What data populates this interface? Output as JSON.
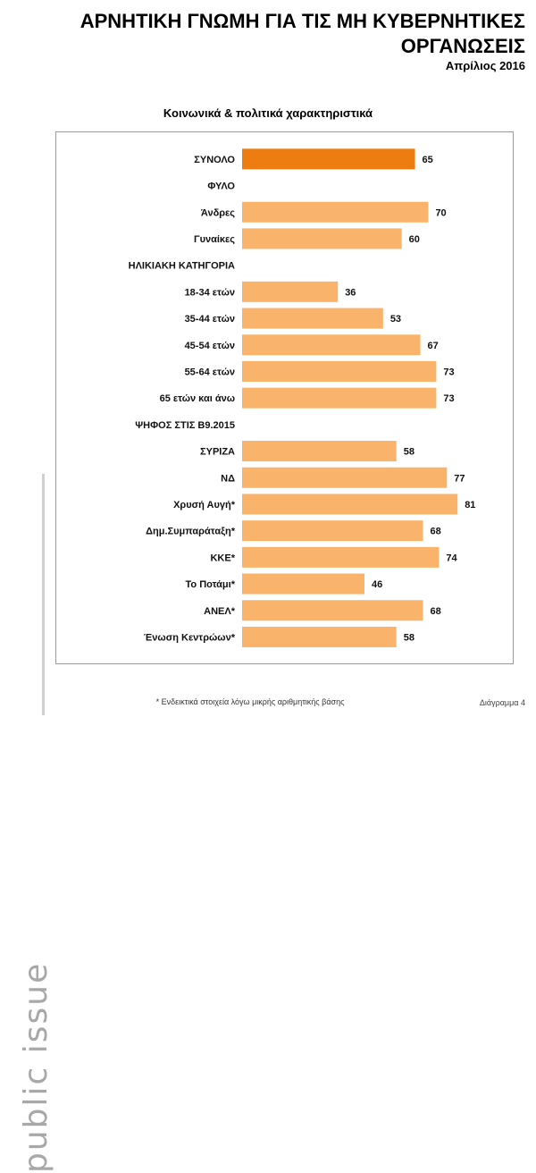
{
  "header": {
    "title_line1": "ΑΡΝΗΤΙΚΗ ΓΝΩΜΗ ΓΙΑ ΤΙΣ ΜΗ ΚΥΒΕΡΝΗΤΙΚΕΣ",
    "title_line2": "ΟΡΓΑΝΩΣΕΙΣ",
    "date": "Απρίλιος 2016"
  },
  "brand": {
    "text": "public issue"
  },
  "footer": {
    "footnote": "* Ενδεικτικά στοιχεία λόγω μικρής αριθμητικής βάσης",
    "diagram_label": "Διάγραμμα 4"
  },
  "colors": {
    "total_bar": "#ed7d10",
    "bar": "#f9b36b"
  },
  "chart_data": {
    "type": "bar",
    "orientation": "horizontal",
    "title": "Κοινωνικά & πολιτικά χαρακτηριστικά",
    "xlim": [
      0,
      90
    ],
    "grid": false,
    "rows": [
      {
        "label": "ΣΥΝΟΛΟ",
        "value": 65,
        "kind": "total"
      },
      {
        "label": "ΦΥΛΟ",
        "value": null,
        "kind": "header"
      },
      {
        "label": "Άνδρες",
        "value": 70,
        "kind": "bar"
      },
      {
        "label": "Γυναίκες",
        "value": 60,
        "kind": "bar"
      },
      {
        "label": "ΗΛΙΚΙΑΚΗ ΚΑΤΗΓΟΡΙΑ",
        "value": null,
        "kind": "header"
      },
      {
        "label": "18-34 ετών",
        "value": 36,
        "kind": "bar"
      },
      {
        "label": "35-44 ετών",
        "value": 53,
        "kind": "bar"
      },
      {
        "label": "45-54 ετών",
        "value": 67,
        "kind": "bar"
      },
      {
        "label": "55-64 ετών",
        "value": 73,
        "kind": "bar"
      },
      {
        "label": "65 ετών και άνω",
        "value": 73,
        "kind": "bar"
      },
      {
        "label": "ΨΗΦΟΣ ΣΤΙΣ Β9.2015",
        "value": null,
        "kind": "header"
      },
      {
        "label": "ΣΥΡΙΖΑ",
        "value": 58,
        "kind": "bar"
      },
      {
        "label": "ΝΔ",
        "value": 77,
        "kind": "bar"
      },
      {
        "label": "Χρυσή Αυγή*",
        "value": 81,
        "kind": "bar"
      },
      {
        "label": "Δημ.Συμπαράταξη*",
        "value": 68,
        "kind": "bar"
      },
      {
        "label": "ΚΚΕ*",
        "value": 74,
        "kind": "bar"
      },
      {
        "label": "Το Ποτάμι*",
        "value": 46,
        "kind": "bar"
      },
      {
        "label": "ΑΝΕΛ*",
        "value": 68,
        "kind": "bar"
      },
      {
        "label": "Ένωση Κεντρώων*",
        "value": 58,
        "kind": "bar"
      }
    ]
  }
}
